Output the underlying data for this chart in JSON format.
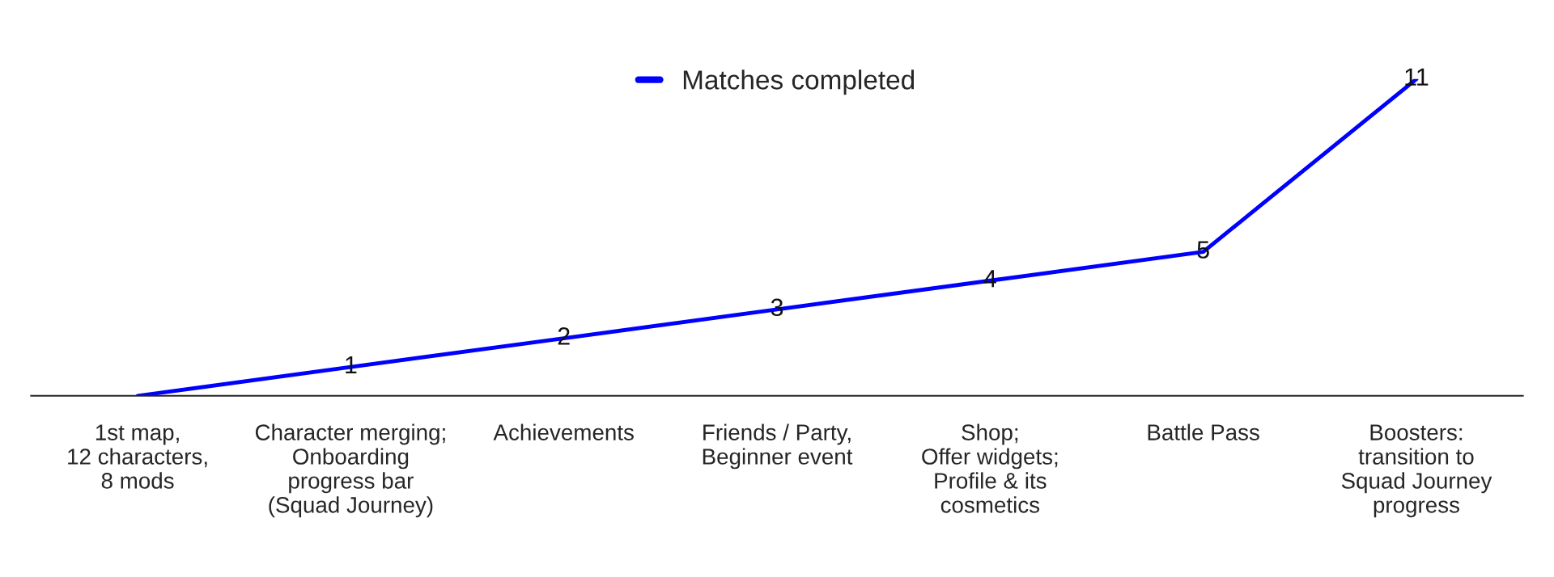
{
  "chart_data": {
    "type": "line",
    "categories": [
      "1st map,\n12 characters,\n8 mods",
      "Character merging;\nOnboarding\nprogress bar\n(Squad Journey)",
      "Achievements",
      "Friends / Party,\nBeginner event",
      "Shop;\nOffer widgets;\nProfile & its\ncosmetics",
      "Battle Pass",
      "Boosters:\ntransition to\nSquad Journey\nprogress"
    ],
    "series": [
      {
        "name": "Matches completed",
        "color": "#0000ff",
        "values": [
          0,
          1,
          2,
          3,
          4,
          5,
          11
        ],
        "value_labels": [
          null,
          "1",
          "2",
          "3",
          "4",
          "5",
          "11"
        ]
      }
    ],
    "tick_labels": "x",
    "legend": "top",
    "grid": false
  }
}
